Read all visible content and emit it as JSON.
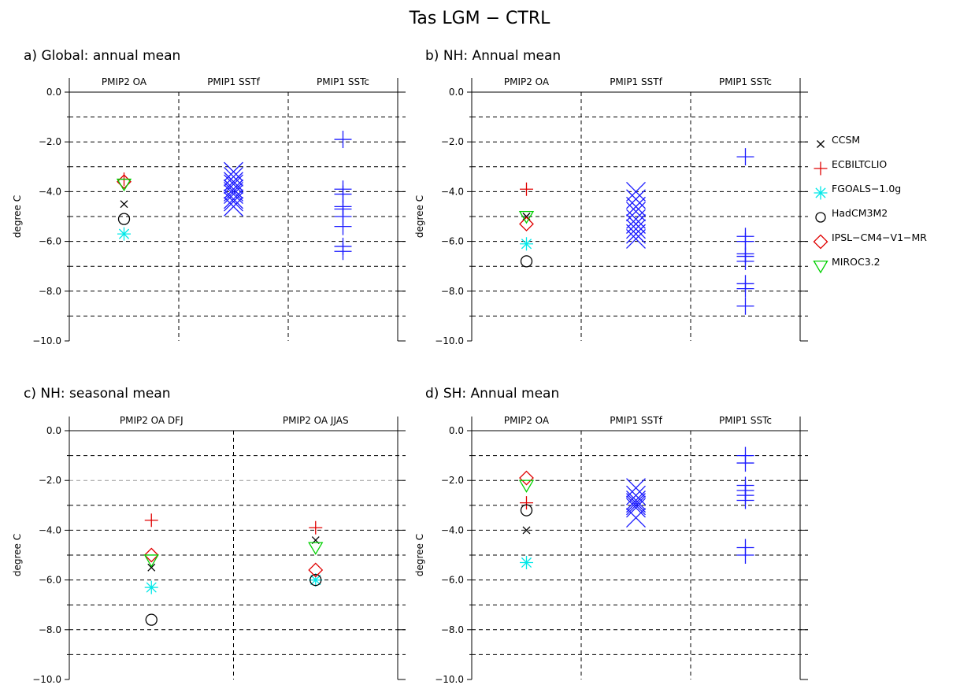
{
  "figure_title": "Tas LGM − CTRL",
  "colors": {
    "CCSM": "#000000",
    "ECBILTCLIO": "#e00000",
    "FGOALS-1.0g": "#00e8e8",
    "HadCM3M2": "#000000",
    "IPSL-CM4-V1-MR": "#e00000",
    "MIROC3.2": "#00d000",
    "PMIP1": "#1a1aff",
    "grid": "#000000"
  },
  "legend": {
    "placement": "right of panel b",
    "items": [
      {
        "name": "CCSM",
        "marker": "x",
        "color": "#000000"
      },
      {
        "name": "ECBILTCLIO",
        "marker": "plus",
        "color": "#e00000"
      },
      {
        "name": "FGOALS−1.0g",
        "marker": "asterisk",
        "color": "#00e8e8"
      },
      {
        "name": "HadCM3M2",
        "marker": "circle",
        "color": "#000000"
      },
      {
        "name": "IPSL−CM4−V1−MR",
        "marker": "diamond",
        "color": "#e00000"
      },
      {
        "name": "MIROC3.2",
        "marker": "triangle-down",
        "color": "#00d000"
      }
    ]
  },
  "chart_data": [
    {
      "id": "a",
      "type": "scatter",
      "title": "a) Global: annual mean",
      "ylabel": "degree C",
      "ylim": [
        -10,
        0
      ],
      "yticks": [
        0,
        -2,
        -4,
        -6,
        -8,
        -10
      ],
      "ytick_labels": [
        "0.0",
        "−2.0",
        "−4.0",
        "−6.0",
        "−8.0",
        "−10.0"
      ],
      "grid": "dashed every 1.0",
      "categories": [
        "PMIP2 OA",
        "PMIP1 SSTf",
        "PMIP1 SSTc"
      ],
      "series": [
        {
          "category": 0,
          "model": "CCSM",
          "value": -4.5
        },
        {
          "category": 0,
          "model": "ECBILTCLIO",
          "value": -3.5
        },
        {
          "category": 0,
          "model": "FGOALS-1.0g",
          "value": -5.7
        },
        {
          "category": 0,
          "model": "HadCM3M2",
          "value": -5.1
        },
        {
          "category": 0,
          "model": "IPSL-CM4-V1-MR",
          "value": -3.6
        },
        {
          "category": 0,
          "model": "MIROC3.2",
          "value": -3.7
        },
        {
          "category": 1,
          "model": "PMIP1",
          "marker": "x",
          "values": [
            -3.2,
            -3.4,
            -3.6,
            -3.7,
            -3.9,
            -4.0,
            -4.1,
            -4.3,
            -4.4,
            -4.6
          ]
        },
        {
          "category": 2,
          "model": "PMIP1",
          "marker": "plus",
          "values": [
            -1.9,
            -3.9,
            -4.1,
            -4.6,
            -4.7,
            -5.0,
            -5.4,
            -6.2,
            -6.4
          ]
        }
      ]
    },
    {
      "id": "b",
      "type": "scatter",
      "title": "b) NH: Annual mean",
      "ylabel": "degree C",
      "ylim": [
        -10,
        0
      ],
      "yticks": [
        0,
        -2,
        -4,
        -6,
        -8,
        -10
      ],
      "ytick_labels": [
        "0.0",
        "−2.0",
        "−4.0",
        "−6.0",
        "−8.0",
        "−10.0"
      ],
      "grid": "dashed every 1.0",
      "categories": [
        "PMIP2 OA",
        "PMIP1 SSTf",
        "PMIP1 SSTc"
      ],
      "series": [
        {
          "category": 0,
          "model": "CCSM",
          "value": -5.0
        },
        {
          "category": 0,
          "model": "ECBILTCLIO",
          "value": -3.9
        },
        {
          "category": 0,
          "model": "FGOALS-1.0g",
          "value": -6.1
        },
        {
          "category": 0,
          "model": "HadCM3M2",
          "value": -6.8
        },
        {
          "category": 0,
          "model": "IPSL-CM4-V1-MR",
          "value": -5.3
        },
        {
          "category": 0,
          "model": "MIROC3.2",
          "value": -5.0
        },
        {
          "category": 1,
          "model": "PMIP1",
          "marker": "x",
          "values": [
            -4.0,
            -4.3,
            -4.6,
            -4.8,
            -5.1,
            -5.3,
            -5.5,
            -5.7,
            -5.9
          ]
        },
        {
          "category": 2,
          "model": "PMIP1",
          "marker": "plus",
          "values": [
            -2.6,
            -5.8,
            -6.0,
            -6.5,
            -6.6,
            -6.8,
            -7.7,
            -7.9,
            -8.6
          ]
        }
      ]
    },
    {
      "id": "c",
      "type": "scatter",
      "title": "c) NH: seasonal mean",
      "ylabel": "degree C",
      "ylim": [
        -10,
        0
      ],
      "yticks": [
        0,
        -2,
        -4,
        -6,
        -8,
        -10
      ],
      "ytick_labels": [
        "0.0",
        "−2.0",
        "−4.0",
        "−6.0",
        "−8.0",
        "−10.0"
      ],
      "grid": "dashed every 1.0",
      "categories": [
        "PMIP2 OA DFJ",
        "PMIP2 OA JJAS"
      ],
      "series": [
        {
          "category": 0,
          "model": "CCSM",
          "value": -5.5
        },
        {
          "category": 0,
          "model": "ECBILTCLIO",
          "value": -3.6
        },
        {
          "category": 0,
          "model": "FGOALS-1.0g",
          "value": -6.3
        },
        {
          "category": 0,
          "model": "HadCM3M2",
          "value": -7.6
        },
        {
          "category": 0,
          "model": "IPSL-CM4-V1-MR",
          "value": -5.0
        },
        {
          "category": 0,
          "model": "MIROC3.2",
          "value": -5.2
        },
        {
          "category": 1,
          "model": "CCSM",
          "value": -4.4
        },
        {
          "category": 1,
          "model": "ECBILTCLIO",
          "value": -3.9
        },
        {
          "category": 1,
          "model": "FGOALS-1.0g",
          "value": -6.0
        },
        {
          "category": 1,
          "model": "HadCM3M2",
          "value": -6.0
        },
        {
          "category": 1,
          "model": "IPSL-CM4-V1-MR",
          "value": -5.6
        },
        {
          "category": 1,
          "model": "MIROC3.2",
          "value": -4.7
        }
      ]
    },
    {
      "id": "d",
      "type": "scatter",
      "title": "d) SH: Annual mean",
      "ylabel": "degree C",
      "ylim": [
        -10,
        0
      ],
      "yticks": [
        0,
        -2,
        -4,
        -6,
        -8,
        -10
      ],
      "ytick_labels": [
        "0.0",
        "−2.0",
        "−4.0",
        "−6.0",
        "−8.0",
        "−10.0"
      ],
      "grid": "dashed every 1.0",
      "categories": [
        "PMIP2 OA",
        "PMIP1 SSTf",
        "PMIP1 SSTc"
      ],
      "series": [
        {
          "category": 0,
          "model": "CCSM",
          "value": -4.0
        },
        {
          "category": 0,
          "model": "ECBILTCLIO",
          "value": -2.9
        },
        {
          "category": 0,
          "model": "FGOALS-1.0g",
          "value": -5.3
        },
        {
          "category": 0,
          "model": "HadCM3M2",
          "value": -3.2
        },
        {
          "category": 0,
          "model": "IPSL-CM4-V1-MR",
          "value": -1.9
        },
        {
          "category": 0,
          "model": "MIROC3.2",
          "value": -2.2
        },
        {
          "category": 1,
          "model": "PMIP1",
          "marker": "x",
          "values": [
            -2.3,
            -2.6,
            -2.8,
            -2.9,
            -3.0,
            -3.1,
            -3.5
          ]
        },
        {
          "category": 2,
          "model": "PMIP1",
          "marker": "plus",
          "values": [
            -1.0,
            -1.3,
            -2.2,
            -2.4,
            -2.6,
            -2.8,
            -4.7,
            -5.0
          ]
        }
      ]
    }
  ]
}
